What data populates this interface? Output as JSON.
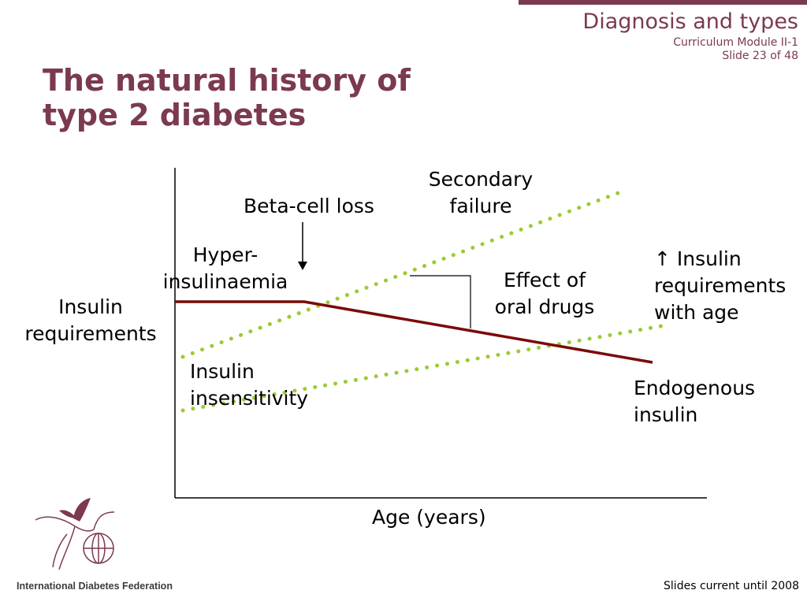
{
  "header": {
    "section_title": "Diagnosis and types",
    "module": "Curriculum Module II-1",
    "slide": "Slide 23 of 48"
  },
  "title": {
    "line1": "The natural history of",
    "line2": "type 2 diabetes"
  },
  "labels": {
    "beta_cell_loss": "Beta-cell loss",
    "secondary_failure": [
      "Secondary",
      "failure"
    ],
    "hyperinsulinaemia": [
      "Hyper-",
      "insulinaemia"
    ],
    "insulin_requirements": [
      "Insulin",
      "requirements"
    ],
    "effect_of_oral_drugs": [
      "Effect of",
      "oral drugs"
    ],
    "increasing_insulin_requirements": [
      "↑ Insulin",
      "requirements",
      "with age"
    ],
    "insulin_insensitivity": [
      "Insulin",
      "insensitivity"
    ],
    "endogenous_insulin": [
      "Endogenous",
      "insulin"
    ],
    "x_axis": "Age (years)"
  },
  "colors": {
    "brand": "#7b3a4e",
    "endogenous_insulin_line": "#7a0a0a",
    "requirement_dots": "#99cc33"
  },
  "footer": {
    "note": "Slides current until 2008",
    "organization": "International Diabetes Federation"
  }
}
